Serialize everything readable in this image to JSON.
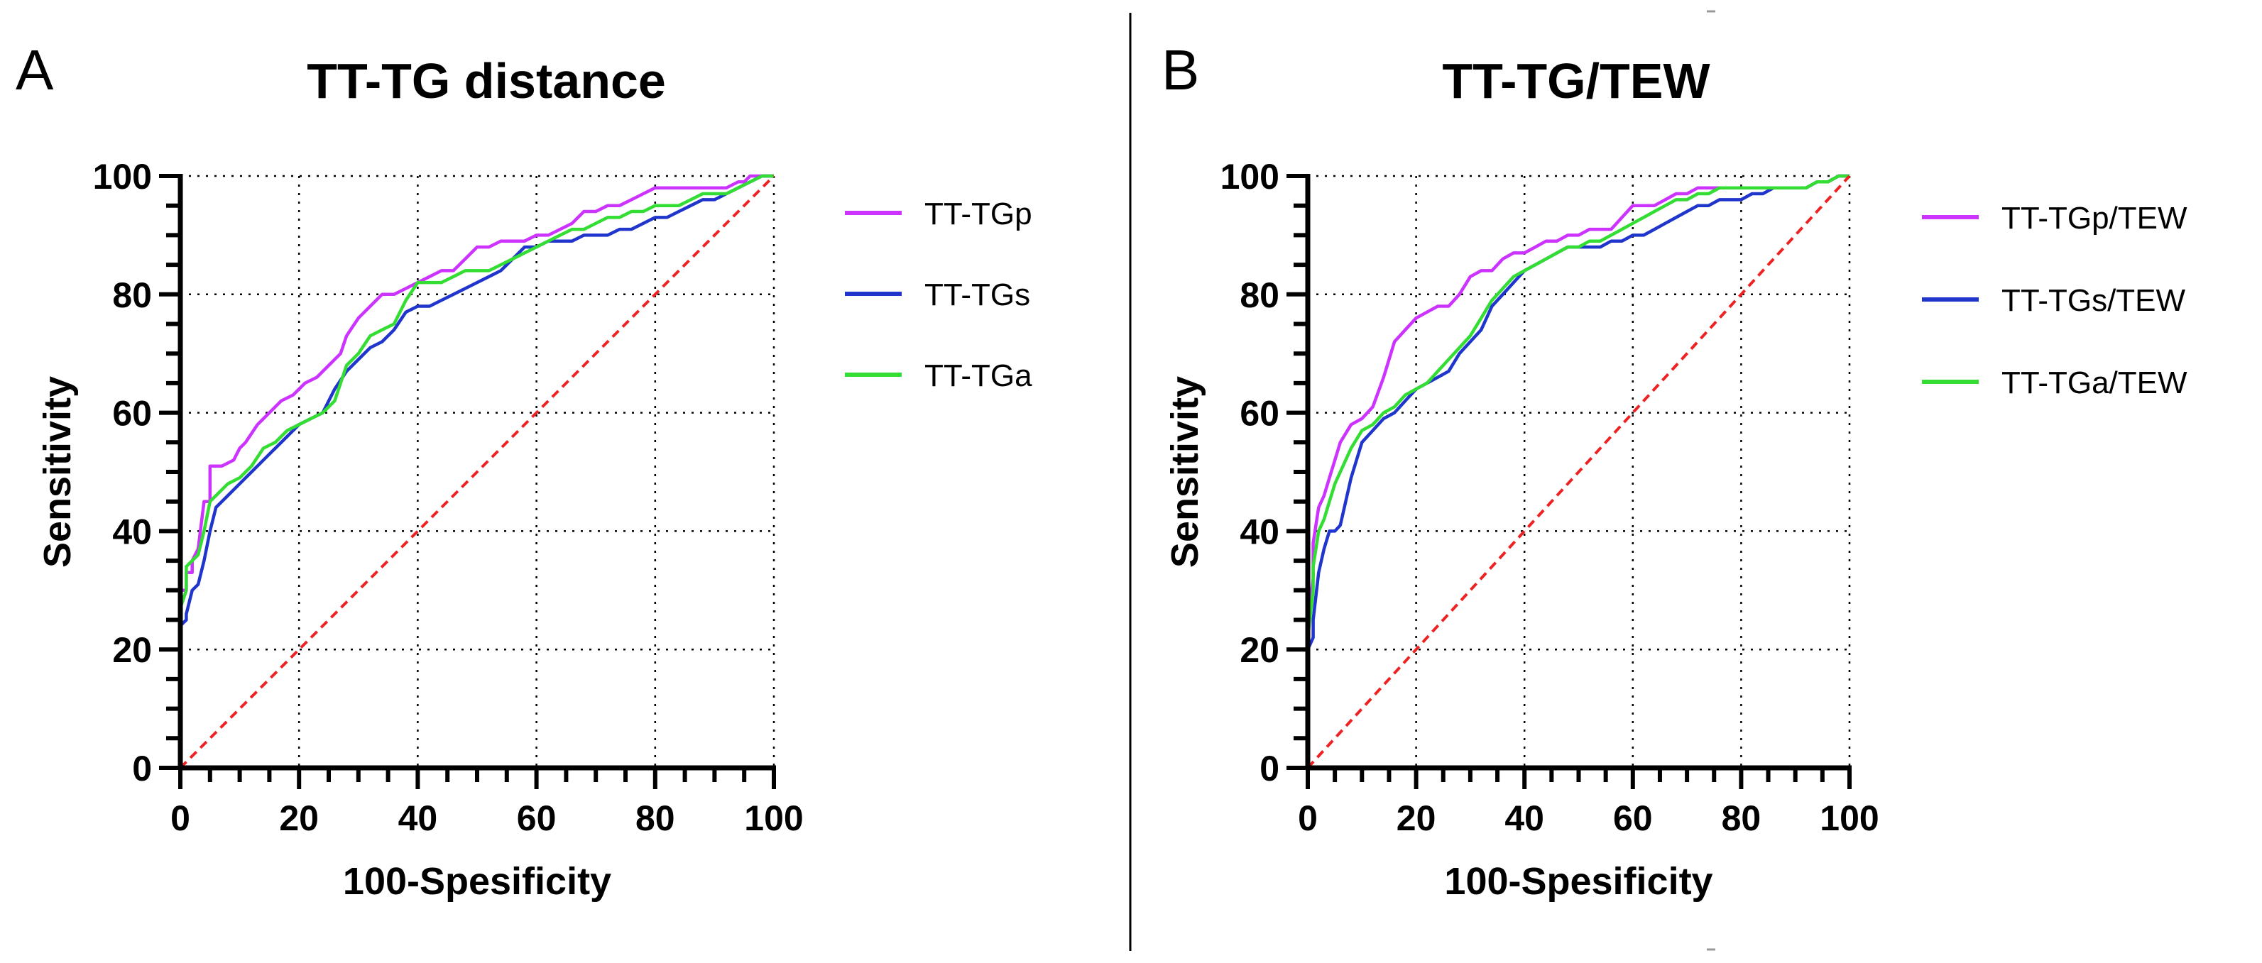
{
  "chart_data": [
    {
      "type": "line",
      "panel_label": "A",
      "title": "TT-TG distance",
      "xlabel": "100-Spesificity",
      "ylabel": "Sensitivity",
      "xlim": [
        0,
        100
      ],
      "ylim": [
        0,
        100
      ],
      "xticks": [
        "0",
        "20",
        "40",
        "60",
        "80",
        "100"
      ],
      "yticks": [
        "0",
        "20",
        "40",
        "60",
        "80",
        "100"
      ],
      "grid": true,
      "legend_position": "right",
      "series": [
        {
          "name": "TT-TGp",
          "color": "#cc33ff",
          "x": [
            0,
            0,
            1,
            1,
            2,
            2,
            3,
            4,
            5,
            5,
            7,
            9,
            10,
            11,
            13,
            15,
            17,
            19,
            21,
            23,
            25,
            27,
            28,
            30,
            32,
            34,
            36,
            38,
            40,
            42,
            44,
            46,
            48,
            50,
            52,
            54,
            56,
            58,
            60,
            62,
            64,
            66,
            68,
            70,
            72,
            74,
            76,
            78,
            80,
            82,
            85,
            88,
            90,
            92,
            94,
            95,
            96,
            98,
            100
          ],
          "y": [
            0,
            30,
            30,
            33,
            33,
            35,
            37,
            45,
            45,
            51,
            51,
            52,
            54,
            55,
            58,
            60,
            62,
            63,
            65,
            66,
            68,
            70,
            73,
            76,
            78,
            80,
            80,
            81,
            82,
            83,
            84,
            84,
            86,
            88,
            88,
            89,
            89,
            89,
            90,
            90,
            91,
            92,
            94,
            94,
            95,
            95,
            96,
            97,
            98,
            98,
            98,
            98,
            98,
            98,
            99,
            99,
            100,
            100,
            100
          ]
        },
        {
          "name": "TT-TGs",
          "color": "#1f35cc",
          "x": [
            0,
            0,
            1,
            1,
            2,
            3,
            4,
            5,
            6,
            8,
            10,
            12,
            14,
            16,
            18,
            20,
            22,
            24,
            26,
            28,
            30,
            32,
            34,
            36,
            38,
            40,
            42,
            44,
            46,
            48,
            50,
            52,
            54,
            56,
            58,
            60,
            62,
            64,
            66,
            68,
            70,
            72,
            74,
            76,
            78,
            80,
            82,
            84,
            86,
            88,
            90,
            92,
            94,
            96,
            98,
            100
          ],
          "y": [
            0,
            24,
            25,
            26,
            30,
            31,
            35,
            40,
            44,
            46,
            48,
            50,
            52,
            54,
            56,
            58,
            59,
            60,
            64,
            67,
            69,
            71,
            72,
            74,
            77,
            78,
            78,
            79,
            80,
            81,
            82,
            83,
            84,
            86,
            88,
            88,
            89,
            89,
            89,
            90,
            90,
            90,
            91,
            91,
            92,
            93,
            93,
            94,
            95,
            96,
            96,
            97,
            98,
            99,
            100,
            100
          ]
        },
        {
          "name": "TT-TGa",
          "color": "#33dd33",
          "x": [
            0,
            0,
            1,
            1,
            2,
            3,
            4,
            5,
            6,
            8,
            10,
            12,
            14,
            16,
            18,
            20,
            22,
            24,
            26,
            28,
            30,
            32,
            34,
            36,
            38,
            40,
            42,
            44,
            46,
            48,
            50,
            52,
            54,
            56,
            58,
            60,
            62,
            64,
            66,
            68,
            70,
            72,
            74,
            76,
            78,
            80,
            82,
            84,
            86,
            88,
            90,
            92,
            94,
            96,
            98,
            100
          ],
          "y": [
            0,
            27,
            30,
            34,
            35,
            36,
            40,
            45,
            46,
            48,
            49,
            51,
            54,
            55,
            57,
            58,
            59,
            60,
            62,
            68,
            70,
            73,
            74,
            75,
            79,
            82,
            82,
            82,
            83,
            84,
            84,
            84,
            85,
            86,
            87,
            88,
            89,
            90,
            91,
            91,
            92,
            93,
            93,
            94,
            94,
            95,
            95,
            95,
            96,
            97,
            97,
            97,
            98,
            99,
            100,
            100
          ]
        },
        {
          "name": "reference",
          "color": "#ee2222",
          "dashed": true,
          "x": [
            0,
            100
          ],
          "y": [
            0,
            100
          ]
        }
      ]
    },
    {
      "type": "line",
      "panel_label": "B",
      "title": "TT-TG/TEW",
      "xlabel": "100-Spesificity",
      "ylabel": "Sensitivity",
      "xlim": [
        0,
        100
      ],
      "ylim": [
        0,
        100
      ],
      "xticks": [
        "0",
        "20",
        "40",
        "60",
        "80",
        "100"
      ],
      "yticks": [
        "0",
        "20",
        "40",
        "60",
        "80",
        "100"
      ],
      "grid": true,
      "legend_position": "right",
      "series": [
        {
          "name": "TT-TGp/TEW",
          "color": "#cc33ff",
          "x": [
            0,
            0,
            1,
            1,
            2,
            3,
            4,
            5,
            6,
            8,
            10,
            12,
            14,
            16,
            18,
            20,
            22,
            24,
            26,
            28,
            30,
            32,
            34,
            36,
            38,
            40,
            42,
            44,
            46,
            48,
            50,
            52,
            54,
            56,
            58,
            60,
            62,
            64,
            66,
            68,
            70,
            72,
            74,
            76,
            78,
            80,
            82,
            84,
            86,
            88,
            90,
            92,
            94,
            96,
            98,
            100
          ],
          "y": [
            0,
            25,
            32,
            38,
            44,
            46,
            49,
            52,
            55,
            58,
            59,
            61,
            66,
            72,
            74,
            76,
            77,
            78,
            78,
            80,
            83,
            84,
            84,
            86,
            87,
            87,
            88,
            89,
            89,
            90,
            90,
            91,
            91,
            91,
            93,
            95,
            95,
            95,
            96,
            97,
            97,
            98,
            98,
            98,
            98,
            98,
            98,
            98,
            98,
            98,
            98,
            98,
            99,
            99,
            100,
            100
          ]
        },
        {
          "name": "TT-TGs/TEW",
          "color": "#1f35cc",
          "x": [
            0,
            0,
            1,
            1,
            2,
            3,
            4,
            5,
            6,
            8,
            10,
            12,
            14,
            16,
            18,
            20,
            22,
            24,
            26,
            28,
            30,
            32,
            34,
            36,
            38,
            40,
            42,
            44,
            46,
            48,
            50,
            52,
            54,
            56,
            58,
            60,
            62,
            64,
            66,
            68,
            70,
            72,
            74,
            76,
            78,
            80,
            82,
            84,
            86,
            88,
            90,
            92,
            94,
            96,
            98,
            100
          ],
          "y": [
            0,
            20,
            22,
            25,
            33,
            37,
            40,
            40,
            41,
            49,
            55,
            57,
            59,
            60,
            62,
            64,
            65,
            66,
            67,
            70,
            72,
            74,
            78,
            80,
            82,
            84,
            85,
            86,
            87,
            88,
            88,
            88,
            88,
            89,
            89,
            90,
            90,
            91,
            92,
            93,
            94,
            95,
            95,
            96,
            96,
            96,
            97,
            97,
            98,
            98,
            98,
            98,
            99,
            99,
            100,
            100
          ]
        },
        {
          "name": "TT-TGa/TEW",
          "color": "#33dd33",
          "x": [
            0,
            0,
            1,
            1,
            2,
            3,
            4,
            5,
            6,
            8,
            10,
            12,
            14,
            16,
            18,
            20,
            22,
            24,
            26,
            28,
            30,
            32,
            34,
            36,
            38,
            40,
            42,
            44,
            46,
            48,
            50,
            52,
            54,
            56,
            58,
            60,
            62,
            64,
            66,
            68,
            70,
            72,
            74,
            76,
            78,
            80,
            82,
            84,
            86,
            88,
            90,
            92,
            94,
            96,
            98,
            100
          ],
          "y": [
            0,
            22,
            30,
            34,
            40,
            42,
            45,
            48,
            50,
            54,
            57,
            58,
            60,
            61,
            63,
            64,
            65,
            67,
            69,
            71,
            73,
            76,
            79,
            81,
            83,
            84,
            85,
            86,
            87,
            88,
            88,
            89,
            89,
            90,
            91,
            92,
            93,
            94,
            95,
            96,
            96,
            97,
            97,
            98,
            98,
            98,
            98,
            98,
            98,
            98,
            98,
            98,
            99,
            99,
            100,
            100
          ]
        },
        {
          "name": "reference",
          "color": "#ee2222",
          "dashed": true,
          "x": [
            0,
            100
          ],
          "y": [
            0,
            100
          ]
        }
      ]
    }
  ]
}
